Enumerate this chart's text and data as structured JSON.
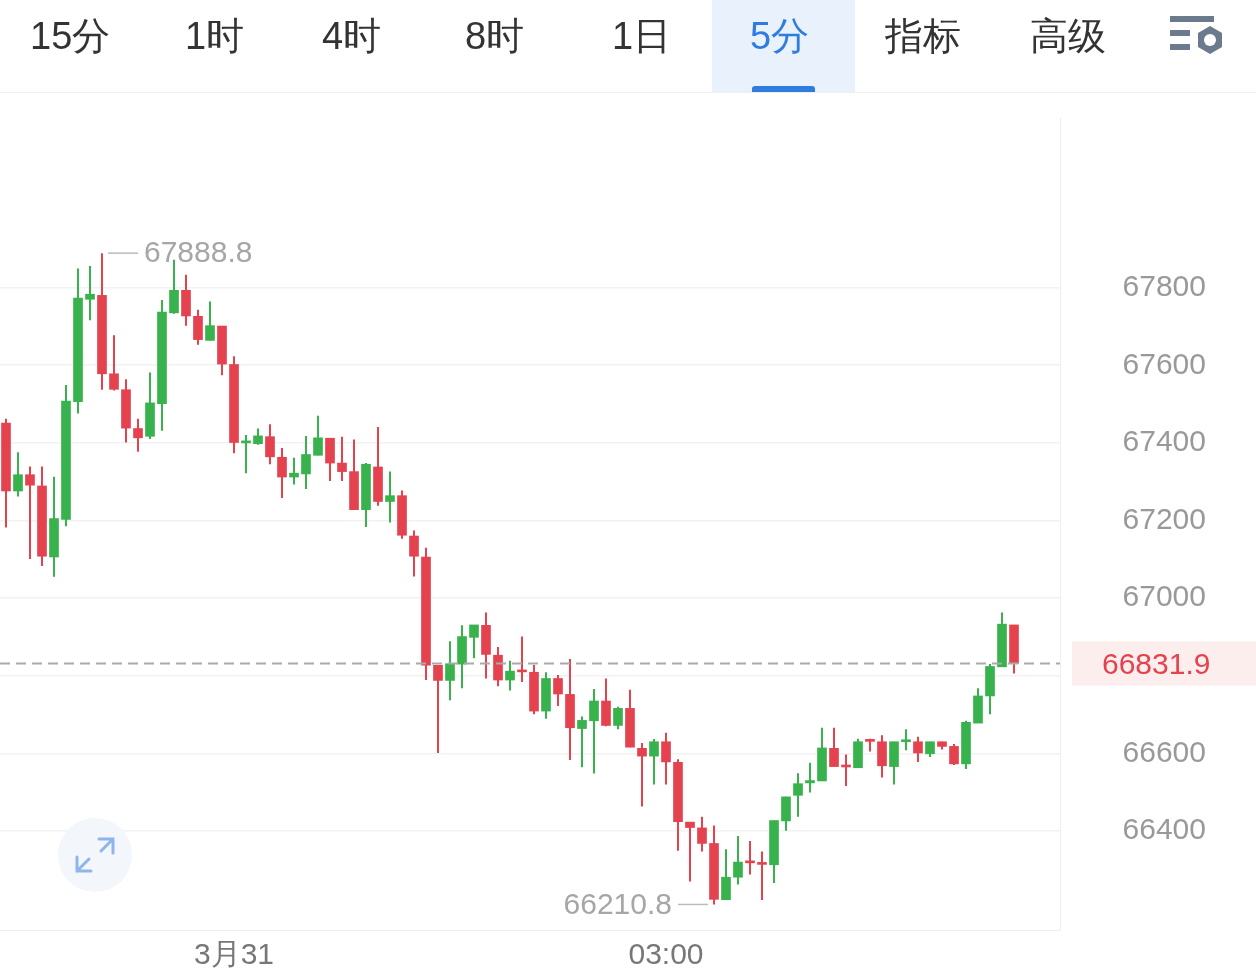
{
  "chart_data": {
    "type": "candlestick",
    "categories": [
      null,
      null,
      null,
      null,
      null,
      null,
      null,
      null,
      null,
      null,
      null,
      null,
      null,
      null,
      null,
      null,
      null,
      null,
      null,
      "3月31",
      null,
      null,
      null,
      null,
      null,
      null,
      null,
      null,
      null,
      null,
      null,
      null,
      null,
      null,
      null,
      null,
      null,
      null,
      null,
      null,
      null,
      null,
      null,
      null,
      null,
      null,
      null,
      null,
      null,
      null,
      null,
      null,
      null,
      null,
      null,
      "03:00",
      null,
      null,
      null,
      null,
      null,
      null,
      null,
      null,
      null,
      null,
      null,
      null,
      null,
      null,
      null,
      null,
      null,
      null,
      null,
      null,
      null,
      null,
      null,
      null,
      null,
      null,
      null,
      null,
      null
    ],
    "ohlc": [
      [
        67451,
        67462,
        67182,
        67276
      ],
      [
        67276,
        67376,
        67262,
        67318
      ],
      [
        67318,
        67339,
        67101,
        67291
      ],
      [
        67289,
        67339,
        67083,
        67108
      ],
      [
        67106,
        67313,
        67055,
        67205
      ],
      [
        67203,
        67549,
        67185,
        67508
      ],
      [
        67506,
        67849,
        67476,
        67773
      ],
      [
        67770,
        67856,
        67716,
        67783
      ],
      [
        67780,
        67888.8,
        67537,
        67578
      ],
      [
        67578,
        67677,
        67535,
        67538
      ],
      [
        67537,
        67564,
        67401,
        67438
      ],
      [
        67437,
        67462,
        67377,
        67413
      ],
      [
        67417,
        67581,
        67410,
        67503
      ],
      [
        67501,
        67768,
        67431,
        67737
      ],
      [
        67735,
        67872,
        67733,
        67793
      ],
      [
        67793,
        67833,
        67702,
        67727
      ],
      [
        67726,
        67743,
        67653,
        67666
      ],
      [
        67664,
        67764,
        67664,
        67702
      ],
      [
        67701,
        67701,
        67574,
        67603
      ],
      [
        67602,
        67623,
        67373,
        67401
      ],
      [
        67400,
        67420,
        67322,
        67403
      ],
      [
        67398,
        67437,
        67395,
        67418
      ],
      [
        67416,
        67448,
        67345,
        67364
      ],
      [
        67363,
        67387,
        67258,
        67312
      ],
      [
        67312,
        67362,
        67293,
        67322
      ],
      [
        67320,
        67418,
        67281,
        67370
      ],
      [
        67368,
        67470,
        67368,
        67413
      ],
      [
        67412,
        67412,
        67302,
        67348
      ],
      [
        67348,
        67416,
        67302,
        67326
      ],
      [
        67326,
        67409,
        67228,
        67228
      ],
      [
        67228,
        67348,
        67183,
        67345
      ],
      [
        67338,
        67441,
        67238,
        67249
      ],
      [
        67249,
        67326,
        67195,
        67264
      ],
      [
        67264,
        67277,
        67153,
        67162
      ],
      [
        67160,
        67174,
        67056,
        67108
      ],
      [
        67106,
        67130,
        66789,
        66827
      ],
      [
        66827,
        66827,
        66601,
        66788
      ],
      [
        66788,
        66889,
        66737,
        66831
      ],
      [
        66830,
        66930,
        66768,
        66901
      ],
      [
        66899,
        66931,
        66845,
        66931
      ],
      [
        66930,
        66963,
        66793,
        66855
      ],
      [
        66853,
        66874,
        66773,
        66789
      ],
      [
        66789,
        66839,
        66762,
        66812
      ],
      [
        66814,
        66901,
        66784,
        66810
      ],
      [
        66809,
        66828,
        66701,
        66709
      ],
      [
        66709,
        66809,
        66689,
        66793
      ],
      [
        66793,
        66802,
        66722,
        66753
      ],
      [
        66752,
        66843,
        66583,
        66666
      ],
      [
        66664,
        66695,
        66564,
        66685
      ],
      [
        66684,
        66766,
        66548,
        66735
      ],
      [
        66735,
        66793,
        66670,
        66672
      ],
      [
        66672,
        66720,
        66662,
        66716
      ],
      [
        66716,
        66764,
        66616,
        66616
      ],
      [
        66613,
        66627,
        66463,
        66593
      ],
      [
        66593,
        66637,
        66520,
        66630
      ],
      [
        66630,
        66653,
        66520,
        66578
      ],
      [
        66577,
        66585,
        66349,
        66424
      ],
      [
        66423,
        66423,
        66270,
        66409
      ],
      [
        66408,
        66437,
        66347,
        66368
      ],
      [
        66368,
        66414,
        66210.8,
        66224
      ],
      [
        66223,
        66353,
        66223,
        66281
      ],
      [
        66281,
        66387,
        66262,
        66320
      ],
      [
        66320,
        66374,
        66288,
        66318
      ],
      [
        66316,
        66347,
        66222,
        66314
      ],
      [
        66313,
        66427,
        66266,
        66427
      ],
      [
        66426,
        66488,
        66401,
        66488
      ],
      [
        66492,
        66549,
        66437,
        66522
      ],
      [
        66524,
        66576,
        66499,
        66530
      ],
      [
        66529,
        66666,
        66529,
        66614
      ],
      [
        66613,
        66666,
        66566,
        66566
      ],
      [
        66566,
        66597,
        66516,
        66565
      ],
      [
        66563,
        66638,
        66563,
        66630
      ],
      [
        66634,
        66638,
        66605,
        66631
      ],
      [
        66630,
        66647,
        66538,
        66568
      ],
      [
        66566,
        66630,
        66520,
        66630
      ],
      [
        66630,
        66662,
        66608,
        66632
      ],
      [
        66630,
        66643,
        66578,
        66601
      ],
      [
        66599,
        66630,
        66591,
        66630
      ],
      [
        66630,
        66630,
        66610,
        66618
      ],
      [
        66618,
        66624,
        66570,
        66573
      ],
      [
        66573,
        66684,
        66560,
        66680
      ],
      [
        66678,
        66768,
        66678,
        66748
      ],
      [
        66748,
        66830,
        66701,
        66824
      ],
      [
        66823,
        66963,
        66823,
        66933
      ],
      [
        66931,
        66931,
        66806,
        66831.9
      ]
    ],
    "colors": [
      "#e5424f",
      "#37b24d",
      "#e5424f",
      "#e5424f",
      "#37b24d",
      "#37b24d",
      "#37b24d",
      "#37b24d",
      "#e5424f",
      "#e5424f",
      "#e5424f",
      "#e5424f",
      "#37b24d",
      "#37b24d",
      "#37b24d",
      "#e5424f",
      "#e5424f",
      "#37b24d",
      "#e5424f",
      "#e5424f",
      "#37b24d",
      "#37b24d",
      "#e5424f",
      "#e5424f",
      "#37b24d",
      "#37b24d",
      "#37b24d",
      "#e5424f",
      "#e5424f",
      "#e5424f",
      "#37b24d",
      "#e5424f",
      "#37b24d",
      "#e5424f",
      "#e5424f",
      "#e5424f",
      "#e5424f",
      "#37b24d",
      "#37b24d",
      "#37b24d",
      "#e5424f",
      "#e5424f",
      "#37b24d",
      "#e5424f",
      "#e5424f",
      "#37b24d",
      "#e5424f",
      "#e5424f",
      "#37b24d",
      "#37b24d",
      "#e5424f",
      "#37b24d",
      "#e5424f",
      "#e5424f",
      "#37b24d",
      "#e5424f",
      "#e5424f",
      "#e5424f",
      "#e5424f",
      "#e5424f",
      "#37b24d",
      "#37b24d",
      "#e5424f",
      "#e5424f",
      "#37b24d",
      "#37b24d",
      "#37b24d",
      "#37b24d",
      "#37b24d",
      "#e5424f",
      "#e5424f",
      "#37b24d",
      "#e5424f",
      "#e5424f",
      "#37b24d",
      "#37b24d",
      "#e5424f",
      "#37b24d",
      "#e5424f",
      "#e5424f",
      "#37b24d",
      "#37b24d",
      "#37b24d",
      "#37b24d",
      "#e5424f"
    ],
    "ylim": [
      66145,
      68237
    ],
    "yticks": [
      66400,
      66600,
      {
        "value": 66800,
        "label": null
      },
      67000,
      67200,
      67400,
      67600,
      67800
    ],
    "grid": "y",
    "ref_lines": [
      {
        "axis": "y",
        "value": 66831.9,
        "label": "66831.9",
        "color": "#aaaaaa",
        "line_style": "dashed"
      }
    ],
    "annotations": [
      "15分",
      "1时",
      "4时",
      "8时",
      "1日",
      "5分",
      "指标",
      "高级",
      "67888.8",
      "66210.8"
    ]
  }
}
